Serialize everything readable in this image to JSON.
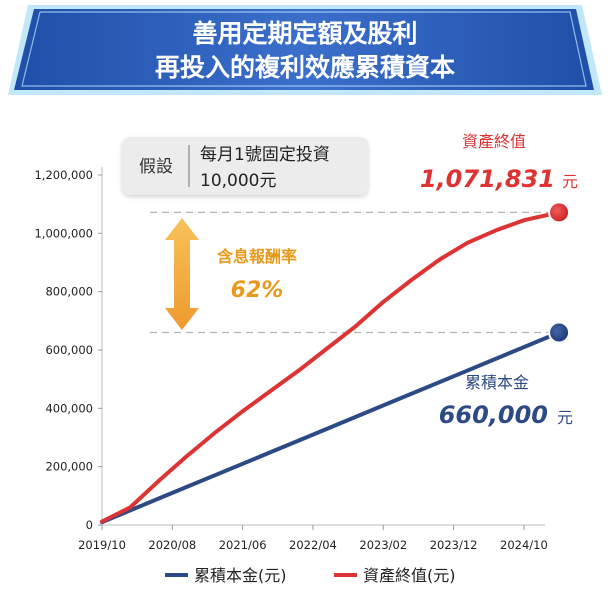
{
  "title": [
    "善用定期定額及股利",
    "再投入的複利效應累積資本"
  ],
  "assumption": {
    "label": "假設",
    "line1": "每月1號固定投資",
    "line2": "10,000元"
  },
  "return_callout": {
    "label": "含息報酬率",
    "value": "62%"
  },
  "end_labels": {
    "asset_label": "資產終值",
    "asset_value": "1,071,831",
    "asset_unit": "元",
    "principal_label": "累積本金",
    "principal_value": "660,000",
    "principal_unit": "元"
  },
  "colors": {
    "principal": "#2c4a86",
    "asset": "#dd3333",
    "arrow": "#f2a93b",
    "title_bg": "#2a5bb0",
    "label_orange": "#e89a1e"
  },
  "chart_data": {
    "type": "line",
    "title": "善用定期定額及股利再投入的複利效應累積資本",
    "xlabel": "",
    "ylabel": "",
    "ylim": [
      0,
      1200000
    ],
    "yticks": [
      0,
      200000,
      400000,
      600000,
      800000,
      1000000,
      1200000
    ],
    "ytick_labels": [
      "0",
      "200,000",
      "400,000",
      "600,000",
      "800,000",
      "1,000,000",
      "1,200,000"
    ],
    "xlim": [
      "2019-10",
      "2025-01"
    ],
    "xtick_labels": [
      "2019/10",
      "2020/08",
      "2021/06",
      "2022/04",
      "2023/02",
      "2023/12",
      "2024/10"
    ],
    "xtick_dates": [
      "2019-10",
      "2020-08",
      "2021-06",
      "2022-04",
      "2023-02",
      "2023-12",
      "2024-10"
    ],
    "legend": "bottom",
    "series": [
      {
        "name": "累積本金(元)",
        "x": [
          "2019-10",
          "2020-08",
          "2021-06",
          "2022-04",
          "2023-02",
          "2023-12",
          "2024-10",
          "2025-03"
        ],
        "values": [
          10000,
          110000,
          210000,
          310000,
          410000,
          510000,
          610000,
          660000
        ]
      },
      {
        "name": "資產終值(元)",
        "x": [
          "2019-10",
          "2020-02",
          "2020-06",
          "2020-10",
          "2021-02",
          "2021-06",
          "2021-10",
          "2022-02",
          "2022-06",
          "2022-10",
          "2023-02",
          "2023-06",
          "2023-10",
          "2024-02",
          "2024-06",
          "2024-10",
          "2025-03"
        ],
        "values": [
          12000,
          60000,
          150000,
          235000,
          315000,
          390000,
          460000,
          530000,
          605000,
          680000,
          765000,
          840000,
          910000,
          968000,
          1010000,
          1045000,
          1071831
        ]
      }
    ]
  }
}
